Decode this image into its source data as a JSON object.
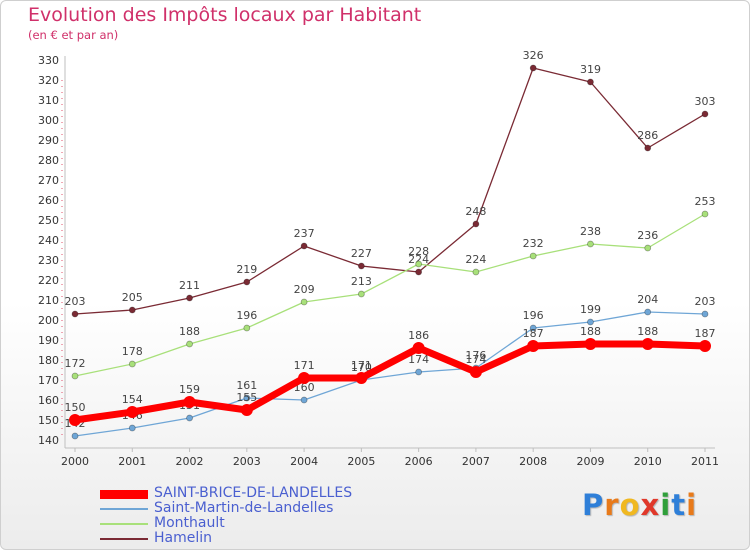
{
  "header": {
    "title": "Evolution des Impôts locaux par Habitant",
    "subtitle": "(en € et par an)"
  },
  "chart_data": {
    "type": "line",
    "title": "Evolution des Impôts locaux par Habitant",
    "subtitle": "(en € et par an)",
    "xlabel": "",
    "ylabel": "",
    "categories": [
      "2000",
      "2001",
      "2002",
      "2003",
      "2004",
      "2005",
      "2006",
      "2007",
      "2008",
      "2009",
      "2010",
      "2011"
    ],
    "ylim": [
      140,
      330
    ],
    "yticks": [
      140,
      150,
      160,
      170,
      180,
      190,
      200,
      210,
      220,
      230,
      240,
      250,
      260,
      270,
      280,
      290,
      300,
      310,
      320,
      330
    ],
    "grid": false,
    "legend_position": "bottom-left",
    "series": [
      {
        "name": "SAINT-BRICE-DE-LANDELLES",
        "color": "#ff0000",
        "values": [
          150,
          154,
          159,
          155,
          171,
          171,
          186,
          174,
          187,
          188,
          188,
          187
        ]
      },
      {
        "name": "Saint-Martin-de-Landelles",
        "color": "#6fa6d6",
        "values": [
          142,
          146,
          151,
          161,
          160,
          170,
          174,
          176,
          196,
          199,
          204,
          203
        ]
      },
      {
        "name": "Monthault",
        "color": "#a8e07a",
        "values": [
          172,
          178,
          188,
          196,
          209,
          213,
          228,
          224,
          232,
          238,
          236,
          253
        ]
      },
      {
        "name": "Hamelin",
        "color": "#7a2a34",
        "values": [
          203,
          205,
          211,
          219,
          237,
          227,
          224,
          248,
          326,
          319,
          286,
          303
        ]
      }
    ]
  },
  "logo": {
    "letters": [
      "P",
      "r",
      "o",
      "x",
      "i",
      "t",
      "i"
    ],
    "colors": [
      "#2f7fd8",
      "#e87a1a",
      "#f0b820",
      "#e0382a",
      "#2f9f3a",
      "#2f7fd8",
      "#e87a1a"
    ]
  }
}
